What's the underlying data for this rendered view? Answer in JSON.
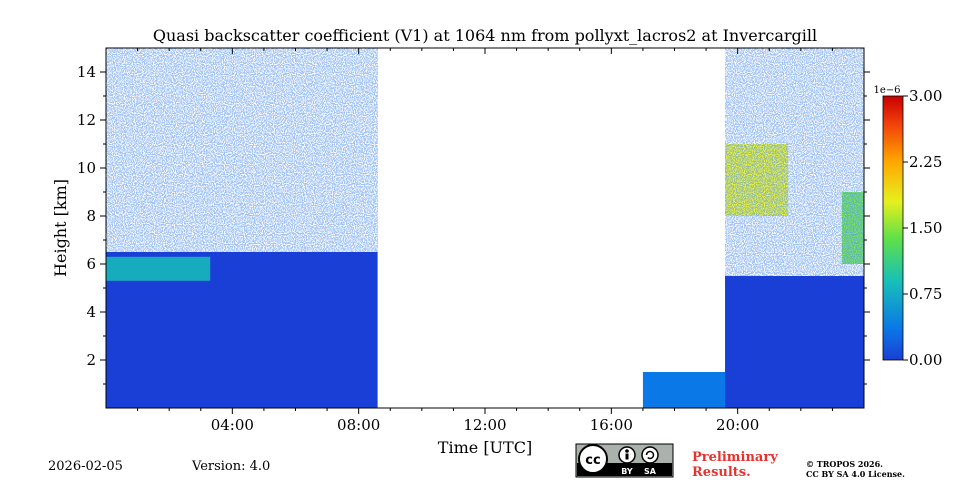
{
  "chart_data": {
    "type": "heatmap",
    "title": "Quasi backscatter coefficient (V1) at 1064 nm from pollyxt_lacros2 at Invercargill",
    "xlabel": "Time [UTC]",
    "ylabel": "Height [km]",
    "x_range_hours": [
      0,
      24
    ],
    "y_range_km": [
      0,
      15
    ],
    "x_ticks": [
      {
        "value": 4,
        "label": "04:00"
      },
      {
        "value": 8,
        "label": "08:00"
      },
      {
        "value": 12,
        "label": "12:00"
      },
      {
        "value": 16,
        "label": "16:00"
      },
      {
        "value": 20,
        "label": "20:00"
      }
    ],
    "y_ticks": [
      {
        "value": 2,
        "label": "2"
      },
      {
        "value": 4,
        "label": "4"
      },
      {
        "value": 6,
        "label": "6"
      },
      {
        "value": 8,
        "label": "8"
      },
      {
        "value": 10,
        "label": "10"
      },
      {
        "value": 12,
        "label": "12"
      },
      {
        "value": 14,
        "label": "14"
      }
    ],
    "colorbar": {
      "exponent_label": "1e−6",
      "range": [
        0.0,
        3.0
      ],
      "ticks": [
        {
          "value": 0.0,
          "label": "0.00"
        },
        {
          "value": 0.75,
          "label": "0.75"
        },
        {
          "value": 1.5,
          "label": "1.50"
        },
        {
          "value": 2.25,
          "label": "2.25"
        },
        {
          "value": 3.0,
          "label": "3.00"
        }
      ],
      "colors": [
        "#1a3fd6",
        "#0a78e6",
        "#18c0b8",
        "#5fe048",
        "#e6f01e",
        "#ffa800",
        "#f03c0a",
        "#c80000"
      ]
    },
    "regions": [
      {
        "name": "boundary-layer-morning",
        "t": [
          0,
          8.6
        ],
        "h": [
          0,
          5
        ],
        "value": 0.1
      },
      {
        "name": "elevated-layer-morning",
        "t": [
          0,
          8.6
        ],
        "h": [
          5,
          6.5
        ],
        "value": 0.15
      },
      {
        "name": "cloud-layer-early",
        "t": [
          0,
          3.3
        ],
        "h": [
          5.3,
          6.3
        ],
        "value": 1.0
      },
      {
        "name": "noise-morning",
        "t": [
          0,
          8.6
        ],
        "h": [
          6.5,
          15
        ],
        "value": 0.1
      },
      {
        "name": "clear-midday",
        "t": [
          8.6,
          19.6
        ],
        "h": [
          0,
          15
        ],
        "value": null
      },
      {
        "name": "near-ground-afternoon",
        "t": [
          17,
          19.6
        ],
        "h": [
          0,
          1.5
        ],
        "value": 0.3
      },
      {
        "name": "boundary-layer-evening",
        "t": [
          19.6,
          24
        ],
        "h": [
          0,
          5.5
        ],
        "value": 0.1
      },
      {
        "name": "cirrus-evening",
        "t": [
          19.6,
          21.6
        ],
        "h": [
          8,
          11
        ],
        "value": 1.5
      },
      {
        "name": "cirrus-late",
        "t": [
          23.3,
          24
        ],
        "h": [
          6,
          9
        ],
        "value": 1.2
      },
      {
        "name": "noise-evening",
        "t": [
          19.6,
          24
        ],
        "h": [
          5.5,
          15
        ],
        "value": 0.1
      }
    ]
  },
  "footer": {
    "date": "2026-02-05",
    "version": "Version: 4.0",
    "license_badge_cc": "cc",
    "license_badge_by": "BY",
    "license_badge_sa": "SA",
    "preliminary_line1": "Preliminary",
    "preliminary_line2": "Results.",
    "copyright_line1": "© TROPOS 2026.",
    "copyright_line2": "CC BY SA 4.0 License."
  }
}
